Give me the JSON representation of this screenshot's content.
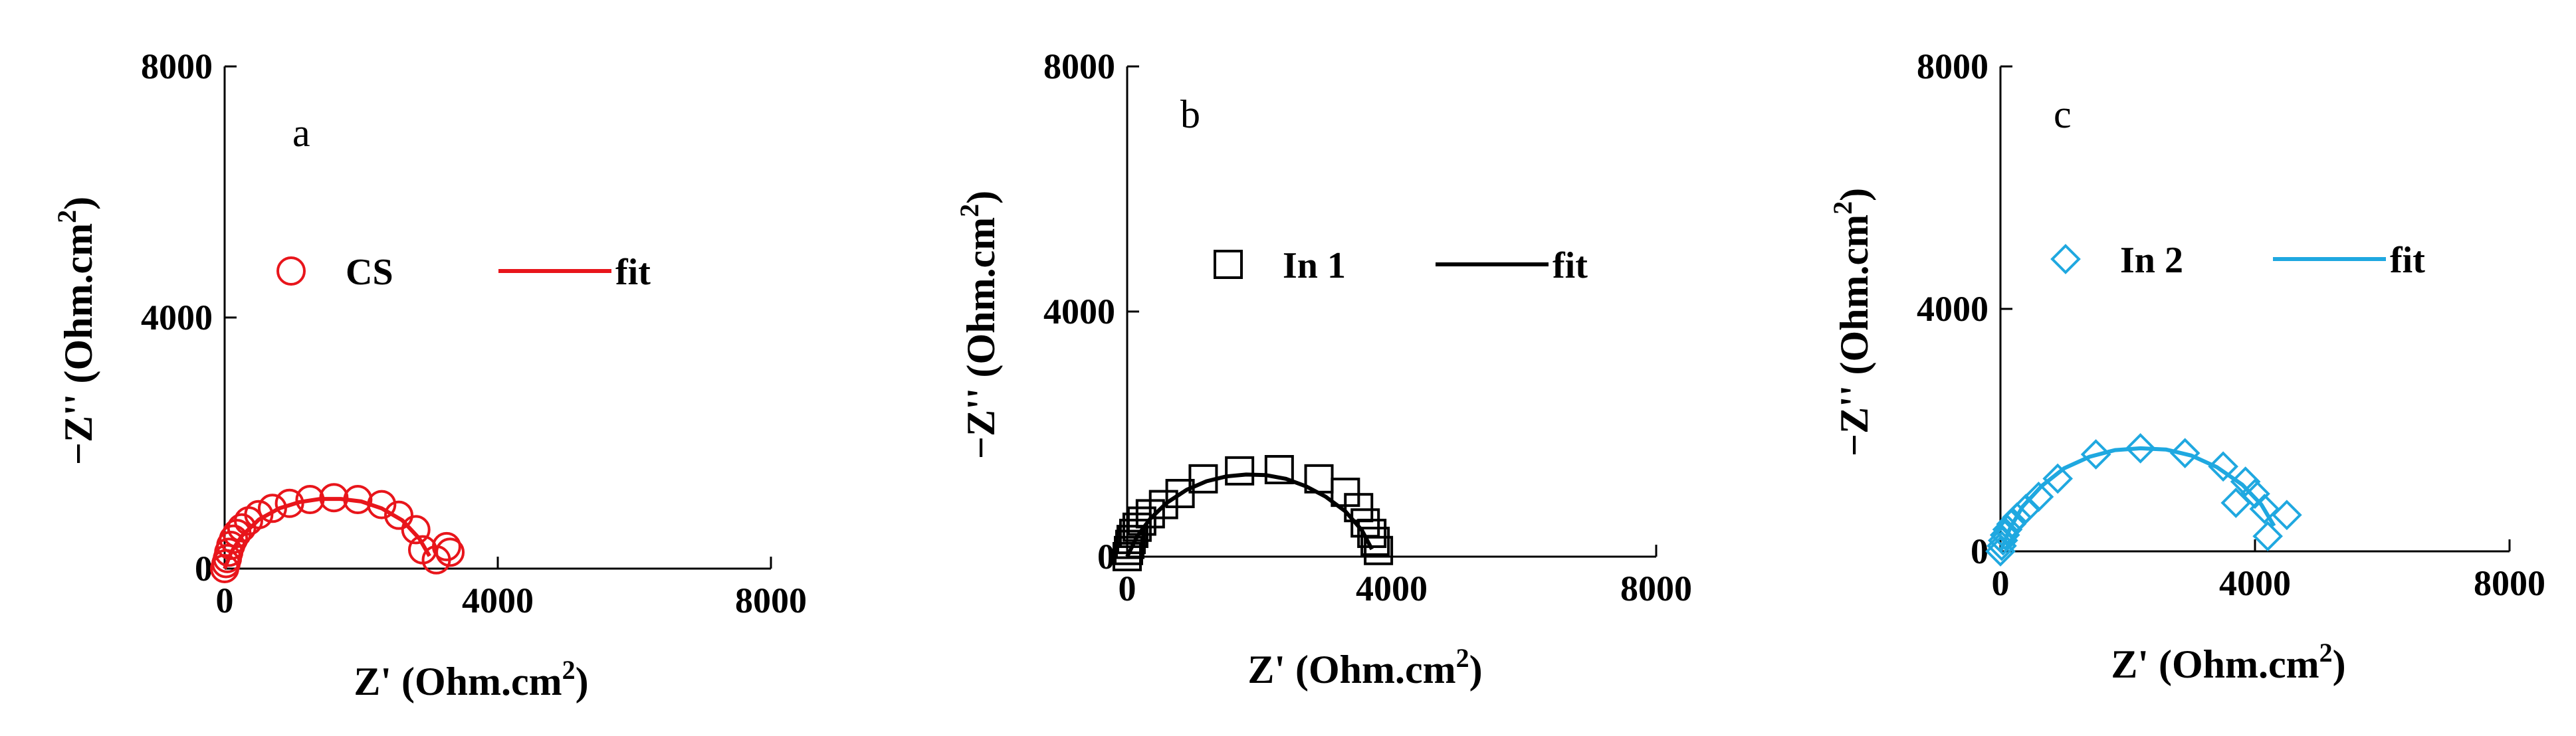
{
  "chart_data": [
    {
      "type": "scatter",
      "panel_label": "a",
      "xlabel": "Z' (Ohm.cm",
      "xlabel_sup": "2",
      "xlabel_end": ")",
      "ylabel": "−Z'' (Ohm.cm",
      "ylabel_sup": "2",
      "ylabel_end": ")",
      "xlim": [
        0,
        8000
      ],
      "ylim": [
        0,
        8000
      ],
      "x_ticks": [
        "0",
        "4000",
        "8000"
      ],
      "y_ticks": [
        "0",
        "4000",
        "8000"
      ],
      "legend": [
        {
          "label": "CS",
          "marker": "circle"
        },
        {
          "label": "fit",
          "marker": "line"
        }
      ],
      "color": "#e8151b",
      "series": [
        {
          "name": "CS",
          "marker": "circle",
          "x": [
            0,
            20,
            40,
            60,
            90,
            130,
            180,
            250,
            350,
            500,
            700,
            950,
            1250,
            1600,
            1950,
            2300,
            2550,
            2800,
            2900,
            3100,
            3250,
            3300
          ],
          "y": [
            0,
            80,
            160,
            260,
            370,
            470,
            560,
            650,
            760,
            860,
            960,
            1040,
            1100,
            1130,
            1100,
            1020,
            850,
            620,
            300,
            140,
            350,
            260
          ]
        },
        {
          "name": "fit",
          "marker": "line",
          "x": [
            0,
            100,
            250,
            500,
            800,
            1100,
            1400,
            1700,
            2000,
            2300,
            2600,
            2850,
            3000
          ],
          "y": [
            0,
            270,
            520,
            780,
            960,
            1060,
            1110,
            1110,
            1070,
            960,
            770,
            480,
            200
          ]
        }
      ]
    },
    {
      "type": "scatter",
      "panel_label": "b",
      "xlabel": "Z' (Ohm.cm",
      "xlabel_sup": "2",
      "xlabel_end": ")",
      "ylabel": "−Z'' (Ohm.cm",
      "ylabel_sup": "2",
      "ylabel_end": ")",
      "xlim": [
        0,
        8000
      ],
      "ylim": [
        0,
        8000
      ],
      "x_ticks": [
        "0",
        "4000",
        "8000"
      ],
      "y_ticks": [
        "0",
        "4000",
        "8000"
      ],
      "legend": [
        {
          "label": "In 1",
          "marker": "square"
        },
        {
          "label": "fit",
          "marker": "line"
        }
      ],
      "color": "#000000",
      "series": [
        {
          "name": "In 1",
          "marker": "square",
          "x": [
            0,
            20,
            40,
            60,
            100,
            150,
            220,
            350,
            550,
            800,
            1150,
            1700,
            2300,
            2900,
            3300,
            3500,
            3600,
            3700,
            3750,
            3800
          ],
          "y": [
            0,
            100,
            200,
            280,
            380,
            480,
            580,
            700,
            850,
            1030,
            1270,
            1400,
            1420,
            1270,
            1050,
            800,
            550,
            380,
            250,
            100
          ]
        },
        {
          "name": "fit",
          "marker": "line",
          "x": [
            0,
            150,
            350,
            600,
            900,
            1200,
            1500,
            1800,
            2100,
            2400,
            2700,
            3000,
            3300,
            3550,
            3700
          ],
          "y": [
            0,
            330,
            620,
            880,
            1090,
            1230,
            1310,
            1340,
            1330,
            1270,
            1150,
            980,
            740,
            430,
            120
          ]
        }
      ]
    },
    {
      "type": "scatter",
      "panel_label": "c",
      "xlabel": "Z' (Ohm.cm",
      "xlabel_sup": "2",
      "xlabel_end": ")",
      "ylabel": "−Z'' (Ohm.cm",
      "ylabel_sup": "2",
      "ylabel_end": ")",
      "xlim": [
        0,
        8000
      ],
      "ylim": [
        0,
        8000
      ],
      "x_ticks": [
        "0",
        "4000",
        "8000"
      ],
      "y_ticks": [
        "0",
        "4000",
        "8000"
      ],
      "legend": [
        {
          "label": "In 2",
          "marker": "diamond"
        },
        {
          "label": "fit",
          "marker": "line"
        }
      ],
      "color": "#1fa8e0",
      "series": [
        {
          "name": "In 2",
          "marker": "diamond",
          "x": [
            0,
            20,
            40,
            70,
            110,
            170,
            260,
            400,
            600,
            900,
            1500,
            2200,
            2900,
            3500,
            3850,
            4000,
            4150,
            3700,
            4500,
            4200
          ],
          "y": [
            0,
            90,
            180,
            270,
            360,
            450,
            560,
            700,
            900,
            1200,
            1600,
            1700,
            1620,
            1400,
            1150,
            950,
            700,
            800,
            600,
            250
          ]
        },
        {
          "name": "fit",
          "marker": "line",
          "x": [
            0,
            150,
            350,
            650,
            1000,
            1400,
            1800,
            2200,
            2600,
            3000,
            3400,
            3800,
            4100,
            4300
          ],
          "y": [
            0,
            380,
            740,
            1080,
            1370,
            1560,
            1670,
            1700,
            1680,
            1580,
            1390,
            1100,
            770,
            420
          ]
        }
      ]
    }
  ]
}
